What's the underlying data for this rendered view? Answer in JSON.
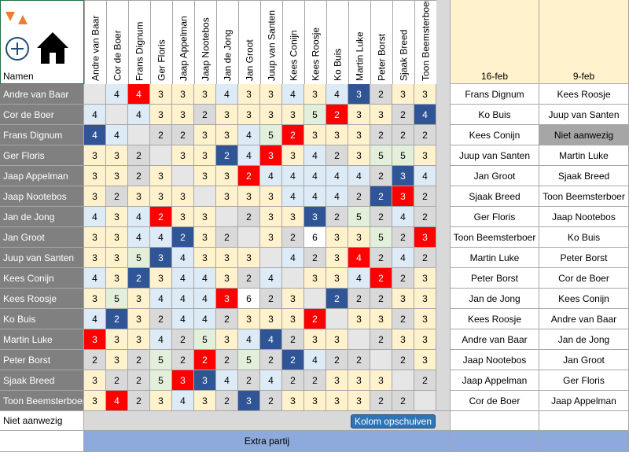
{
  "header": {
    "label": "Namen"
  },
  "names": [
    "Andre van Baar",
    "Cor de Boer",
    "Frans Dignum",
    "Ger Floris",
    "Jaap Appelman",
    "Jaap Nootebos",
    "Jan de Jong",
    "Jan Groot",
    "Juup van Santen",
    "Kees Conijn",
    "Kees Roosje",
    "Ko Buis",
    "Martin Luke",
    "Peter Borst",
    "Sjaak Breed",
    "Toon Beemsterboer"
  ],
  "matrix": {
    "rows": [
      [
        null,
        4,
        4,
        3,
        3,
        3,
        4,
        3,
        3,
        4,
        3,
        4,
        3,
        2,
        3,
        3
      ],
      [
        4,
        null,
        4,
        3,
        3,
        2,
        3,
        3,
        3,
        3,
        5,
        2,
        3,
        3,
        2,
        4
      ],
      [
        4,
        4,
        null,
        2,
        2,
        3,
        3,
        4,
        5,
        2,
        3,
        3,
        3,
        2,
        2,
        2
      ],
      [
        3,
        3,
        2,
        null,
        3,
        3,
        2,
        4,
        3,
        3,
        4,
        2,
        3,
        5,
        5,
        3
      ],
      [
        3,
        3,
        2,
        3,
        null,
        3,
        3,
        2,
        4,
        4,
        4,
        4,
        4,
        2,
        3,
        4
      ],
      [
        3,
        2,
        3,
        3,
        3,
        null,
        3,
        3,
        3,
        4,
        4,
        4,
        2,
        2,
        3,
        2
      ],
      [
        4,
        3,
        4,
        2,
        3,
        3,
        null,
        2,
        3,
        3,
        3,
        2,
        5,
        2,
        4,
        2
      ],
      [
        3,
        3,
        4,
        4,
        2,
        3,
        2,
        null,
        3,
        2,
        6,
        3,
        3,
        5,
        2,
        3
      ],
      [
        3,
        3,
        5,
        3,
        4,
        3,
        3,
        3,
        null,
        4,
        2,
        3,
        4,
        2,
        4,
        2
      ],
      [
        4,
        3,
        2,
        3,
        4,
        4,
        3,
        2,
        4,
        null,
        3,
        3,
        4,
        2,
        2,
        3
      ],
      [
        3,
        5,
        3,
        4,
        4,
        4,
        3,
        6,
        2,
        3,
        null,
        2,
        2,
        2,
        3,
        3
      ],
      [
        4,
        2,
        3,
        2,
        4,
        4,
        2,
        3,
        3,
        3,
        2,
        null,
        3,
        3,
        2,
        3
      ],
      [
        3,
        3,
        3,
        4,
        2,
        5,
        3,
        4,
        4,
        2,
        3,
        3,
        null,
        2,
        3,
        3
      ],
      [
        2,
        3,
        2,
        5,
        2,
        2,
        2,
        5,
        2,
        2,
        4,
        2,
        2,
        null,
        2,
        3
      ],
      [
        3,
        2,
        2,
        5,
        3,
        3,
        4,
        2,
        4,
        2,
        2,
        3,
        3,
        3,
        null,
        2
      ],
      [
        3,
        4,
        2,
        3,
        4,
        3,
        2,
        3,
        2,
        3,
        3,
        3,
        3,
        2,
        2,
        null
      ]
    ],
    "highlights": [
      {
        "red": 2,
        "blue": 12
      },
      {
        "red": 11,
        "blue": 15
      },
      {
        "red": 9,
        "blue": 0
      },
      {
        "red": 8,
        "blue": 6
      },
      {
        "red": 7,
        "blue": 14
      },
      {
        "red": 14,
        "blue": 13
      },
      {
        "red": 3,
        "blue": 10
      },
      {
        "red": 15,
        "blue": 4
      },
      {
        "red": 12,
        "blue": 3
      },
      {
        "red": 13,
        "blue": 2
      },
      {
        "red": 6,
        "blue": 11
      },
      {
        "red": 10,
        "blue": 1
      },
      {
        "red": 0,
        "blue": 8
      },
      {
        "red": 5,
        "blue": 9
      },
      {
        "red": 4,
        "blue": 5
      },
      {
        "red": 1,
        "blue": 7
      }
    ],
    "colors": {
      "2": "#d9d9d9",
      "3": "#fff2cc",
      "4": "#ddebf7",
      "5": "#e2efda",
      "6": "#ffffff",
      "red": "#ff0000",
      "blue": "#2f5597",
      "empty": "#e7e6e6"
    }
  },
  "rounds": [
    {
      "date": "16-feb",
      "names": [
        "Frans Dignum",
        "Ko Buis",
        "Kees Conijn",
        "Juup van Santen",
        "Jan Groot",
        "Sjaak Breed",
        "Ger Floris",
        "Toon Beemsterboer",
        "Martin Luke",
        "Peter Borst",
        "Jan de Jong",
        "Kees Roosje",
        "Andre van Baar",
        "Jaap Nootebos",
        "Jaap Appelman",
        "Cor de Boer"
      ]
    },
    {
      "date": "9-feb",
      "names": [
        "Kees Roosje",
        "Juup van Santen",
        "Niet aanwezig",
        "Martin Luke",
        "Sjaak Breed",
        "Toon Beemsterboer",
        "Jaap Nootebos",
        "Ko Buis",
        "Peter Borst",
        "Cor de Boer",
        "Kees Conijn",
        "Andre van Baar",
        "Jan de Jong",
        "Jan Groot",
        "Ger Floris",
        "Jaap Appelman"
      ]
    }
  ],
  "footer": {
    "absent": "Niet aanwezig",
    "button": "Kolom opschuiven",
    "extra": "Extra partij"
  }
}
